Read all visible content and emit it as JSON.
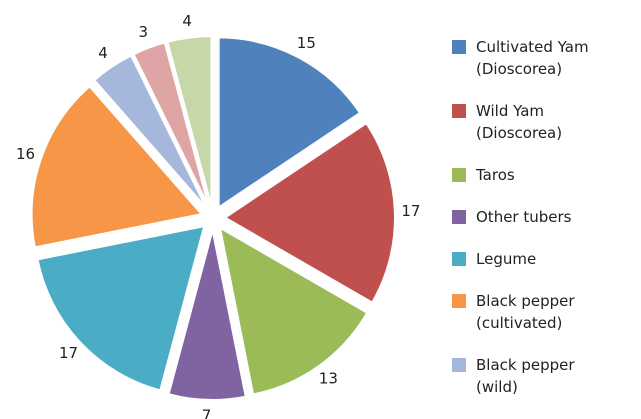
{
  "chart_data": {
    "type": "pie",
    "categories": [
      "Cultivated Yam (Dioscorea)",
      "Wild Yam (Dioscorea)",
      "Taros",
      "Other tubers",
      "Legume",
      "Black pepper (cultivated)",
      "Black pepper (wild)",
      null,
      null
    ],
    "values": [
      15,
      17,
      13,
      7,
      17,
      16,
      4,
      3,
      4
    ],
    "colors": [
      "#4f81bd",
      "#c0504d",
      "#9bbb59",
      "#8064a2",
      "#4bacc6",
      "#f79646",
      "#a5b8dc",
      "#dea5a4",
      "#c6d8a7"
    ],
    "exploded": true,
    "legend": "right"
  }
}
